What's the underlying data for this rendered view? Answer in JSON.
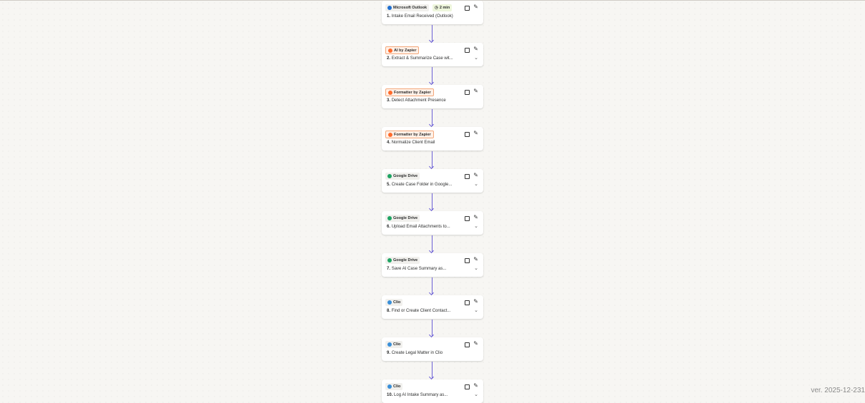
{
  "steps": [
    {
      "app": "Microsoft Outlook",
      "icon": "outlook-icon",
      "color": "#1f6fd1",
      "orange": false,
      "time": "2 min",
      "num": "1.",
      "title": "Intake Email Received (Outlook)",
      "chevron": false
    },
    {
      "app": "AI by Zapier",
      "icon": "ai-zapier-icon",
      "color": "#ff6a2b",
      "orange": true,
      "num": "2.",
      "title": "Extract & Summarize Case wit...",
      "chevron": true
    },
    {
      "app": "Formatter by Zapier",
      "icon": "formatter-icon",
      "color": "#ff6a2b",
      "orange": true,
      "num": "3.",
      "title": "Detect Attachment Presence",
      "chevron": false
    },
    {
      "app": "Formatter by Zapier",
      "icon": "formatter-icon",
      "color": "#ff6a2b",
      "orange": true,
      "num": "4.",
      "title": "Normalize Client Email",
      "chevron": false
    },
    {
      "app": "Google Drive",
      "icon": "google-drive-icon",
      "color": "#1fa463",
      "orange": false,
      "num": "5.",
      "title": "Create Case Folder in Google...",
      "chevron": true
    },
    {
      "app": "Google Drive",
      "icon": "google-drive-icon",
      "color": "#1fa463",
      "orange": false,
      "num": "6.",
      "title": "Upload Email Attachments to...",
      "chevron": true
    },
    {
      "app": "Google Drive",
      "icon": "google-drive-icon",
      "color": "#1fa463",
      "orange": false,
      "num": "7.",
      "title": "Save AI Case Summary as...",
      "chevron": true
    },
    {
      "app": "Clio",
      "icon": "clio-icon",
      "color": "#3a8fd8",
      "orange": false,
      "num": "8.",
      "title": "Find or Create Client Contact...",
      "chevron": true
    },
    {
      "app": "Clio",
      "icon": "clio-icon",
      "color": "#3a8fd8",
      "orange": false,
      "num": "9.",
      "title": "Create Legal Matter in Clio",
      "chevron": false
    },
    {
      "app": "Clio",
      "icon": "clio-icon",
      "color": "#3a8fd8",
      "orange": false,
      "num": "10.",
      "title": "Log AI Intake Summary as...",
      "chevron": true
    }
  ],
  "version": "ver. 2025-12-231"
}
